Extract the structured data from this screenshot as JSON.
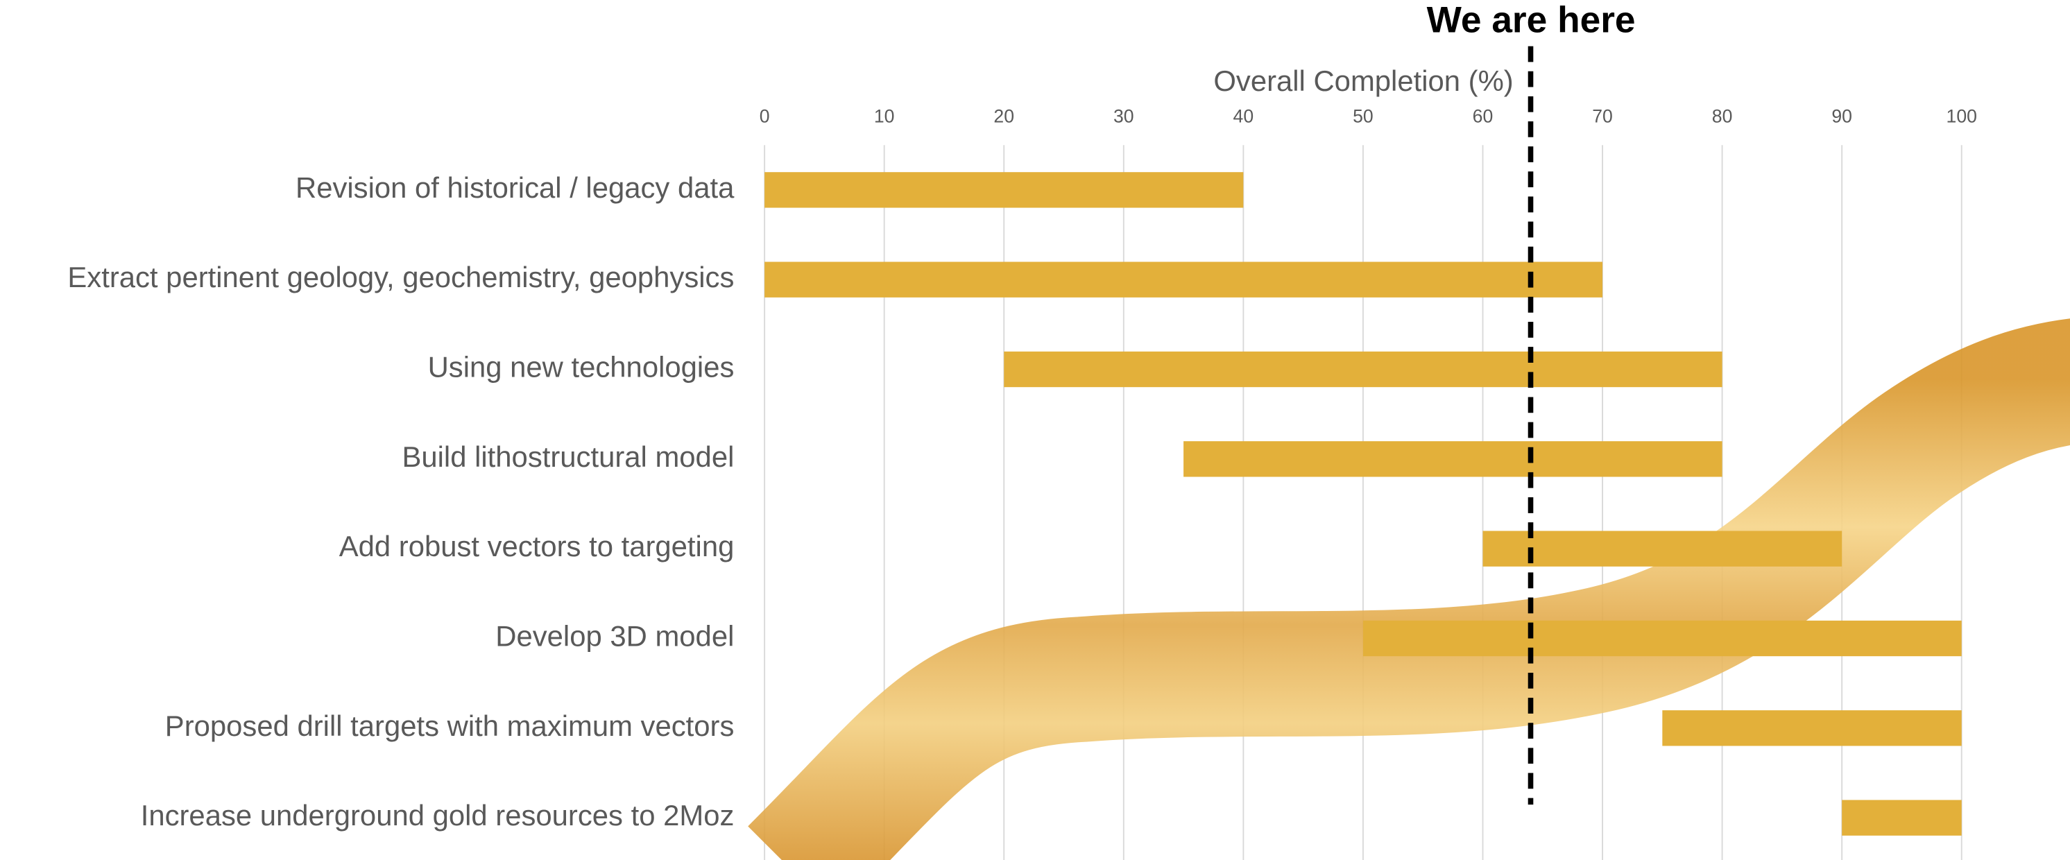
{
  "chart_data": {
    "type": "floating-bar",
    "axis_title": "Overall Completion (%)",
    "annotation": "We are here",
    "marker": 64,
    "categories": [
      "Revision of historical / legacy data",
      "Extract pertinent geology, geochemistry, geophysics",
      "Using new technologies",
      "Build lithostructural model",
      "Add robust vectors to targeting",
      "Develop 3D model",
      "Proposed drill targets with maximum vectors",
      "Increase underground gold resources to 2Moz"
    ],
    "start": [
      0,
      0,
      20,
      35,
      60,
      50,
      75,
      90
    ],
    "end": [
      40,
      70,
      80,
      80,
      90,
      100,
      100,
      100
    ],
    "color": "#e3b03a",
    "xlim": [
      0,
      109
    ],
    "xticks": [
      0,
      10,
      20,
      30,
      40,
      50,
      60,
      70,
      80,
      90,
      100
    ],
    "grid": true
  }
}
